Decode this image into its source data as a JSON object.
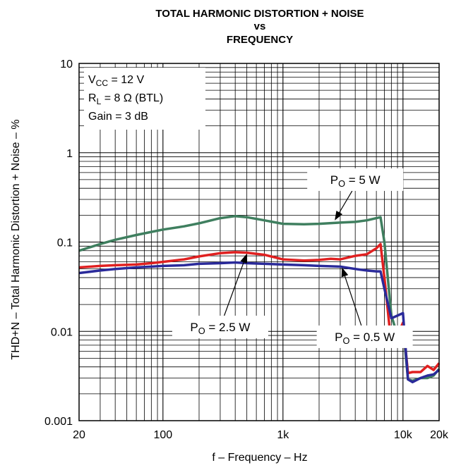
{
  "chart_data": {
    "type": "line",
    "title": {
      "line1": "TOTAL HARMONIC DISTORTION + NOISE",
      "line2": "vs",
      "line3": "FREQUENCY"
    },
    "xlabel": "f – Frequency – Hz",
    "ylabel": "THD+N – Total Harmonic Distortion + Noise – %",
    "xscale": "log",
    "yscale": "log",
    "xlim": [
      20,
      20000
    ],
    "ylim": [
      0.001,
      10
    ],
    "grid": true,
    "x_ticks": [
      {
        "value": 20,
        "label": "20"
      },
      {
        "value": 100,
        "label": "100"
      },
      {
        "value": 1000,
        "label": "1k"
      },
      {
        "value": 10000,
        "label": "10k"
      },
      {
        "value": 20000,
        "label": "20k"
      }
    ],
    "y_ticks": [
      {
        "value": 10,
        "label": "10"
      },
      {
        "value": 1,
        "label": "1"
      },
      {
        "value": 0.1,
        "label": "0.1"
      },
      {
        "value": 0.01,
        "label": "0.01"
      },
      {
        "value": 0.001,
        "label": "0.001"
      }
    ],
    "conditions": [
      {
        "pre": "V",
        "sub": "CC",
        "post": " = 12 V"
      },
      {
        "pre": "R",
        "sub": "L",
        "post": " = 8 Ω (BTL)"
      },
      {
        "pre": "Gain = 3 dB",
        "sub": "",
        "post": ""
      }
    ],
    "series": [
      {
        "name": {
          "pre": "P",
          "sub": "O",
          "post": " = 5 W"
        },
        "color": "#3f7f5f",
        "x": [
          20,
          30,
          40,
          60,
          80,
          100,
          150,
          200,
          300,
          400,
          500,
          700,
          1000,
          1500,
          2000,
          3000,
          4000,
          5000,
          6000,
          6500,
          7000,
          8000,
          9000,
          10000,
          11000,
          12000,
          14000,
          16000,
          18000,
          20000
        ],
        "y": [
          0.08,
          0.095,
          0.106,
          0.12,
          0.13,
          0.138,
          0.15,
          0.162,
          0.185,
          0.195,
          0.19,
          0.175,
          0.16,
          0.158,
          0.16,
          0.165,
          0.168,
          0.175,
          0.185,
          0.19,
          0.1,
          0.015,
          0.009,
          0.0115,
          0.0029,
          0.0028,
          0.003,
          0.003,
          0.0032,
          0.0038
        ]
      },
      {
        "name": {
          "pre": "P",
          "sub": "O",
          "post": " = 2.5 W"
        },
        "color": "#e02020",
        "x": [
          20,
          30,
          40,
          60,
          80,
          100,
          150,
          200,
          300,
          400,
          500,
          700,
          1000,
          1500,
          2000,
          2500,
          3000,
          4000,
          5000,
          6000,
          6500,
          7000,
          8000,
          9000,
          10000,
          11000,
          12000,
          14000,
          16000,
          18000,
          20000
        ],
        "y": [
          0.052,
          0.054,
          0.055,
          0.056,
          0.058,
          0.06,
          0.064,
          0.069,
          0.075,
          0.077,
          0.076,
          0.072,
          0.064,
          0.062,
          0.063,
          0.065,
          0.064,
          0.07,
          0.073,
          0.085,
          0.095,
          0.04,
          0.007,
          0.009,
          0.0125,
          0.0034,
          0.0035,
          0.0035,
          0.0041,
          0.0037,
          0.0044
        ]
      },
      {
        "name": {
          "pre": "P",
          "sub": "O",
          "post": " = 0.5 W"
        },
        "color": "#2a2a9a",
        "x": [
          20,
          30,
          40,
          60,
          80,
          100,
          150,
          200,
          300,
          400,
          500,
          700,
          1000,
          1500,
          2000,
          3000,
          4000,
          5000,
          6000,
          6500,
          7000,
          8000,
          9000,
          10000,
          11000,
          12000,
          14000,
          16000,
          18000,
          20000
        ],
        "y": [
          0.045,
          0.048,
          0.05,
          0.052,
          0.053,
          0.054,
          0.055,
          0.057,
          0.058,
          0.059,
          0.058,
          0.057,
          0.056,
          0.055,
          0.054,
          0.053,
          0.05,
          0.048,
          0.047,
          0.047,
          0.03,
          0.014,
          0.015,
          0.016,
          0.0029,
          0.0027,
          0.003,
          0.0032,
          0.0033,
          0.0037
        ]
      }
    ],
    "annotations": [
      {
        "series": 0,
        "label_x": 4000,
        "label_y": 0.5,
        "arrow_x": 2700,
        "arrow_y": 0.175
      },
      {
        "series": 1,
        "label_x": 300,
        "label_y": 0.0112,
        "arrow_x": 500,
        "arrow_y": 0.074
      },
      {
        "series": 2,
        "label_x": 4800,
        "label_y": 0.0087,
        "arrow_x": 3100,
        "arrow_y": 0.052
      }
    ]
  }
}
